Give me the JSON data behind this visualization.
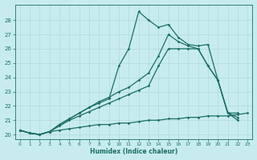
{
  "xlabel": "Humidex (Indice chaleur)",
  "bg_color": "#c8ecee",
  "grid_color": "#afd8da",
  "line_color": "#1a6e65",
  "xlim": [
    -0.5,
    23.5
  ],
  "ylim": [
    19.7,
    29.1
  ],
  "x_ticks": [
    0,
    1,
    2,
    3,
    4,
    5,
    6,
    7,
    8,
    9,
    10,
    11,
    12,
    13,
    14,
    15,
    16,
    17,
    18,
    19,
    20,
    21,
    22,
    23
  ],
  "y_ticks": [
    20,
    21,
    22,
    23,
    24,
    25,
    26,
    27,
    28
  ],
  "line_flat_x": [
    0,
    1,
    2,
    3,
    4,
    5,
    6,
    7,
    8,
    9,
    10,
    11,
    12,
    13,
    14,
    15,
    16,
    17,
    18,
    19,
    20,
    21,
    22,
    23
  ],
  "line_flat_y": [
    20.3,
    20.1,
    20.0,
    20.2,
    20.3,
    20.4,
    20.5,
    20.6,
    20.7,
    20.7,
    20.8,
    20.8,
    20.9,
    21.0,
    21.0,
    21.1,
    21.1,
    21.2,
    21.2,
    21.3,
    21.3,
    21.3,
    21.4,
    21.5
  ],
  "line_diag1_x": [
    0,
    1,
    2,
    3,
    4,
    5,
    6,
    7,
    8,
    9,
    10,
    11,
    12,
    13,
    14,
    15,
    16,
    17,
    18,
    19,
    20,
    21,
    22
  ],
  "line_diag1_y": [
    20.3,
    20.1,
    20.0,
    20.2,
    20.6,
    21.0,
    21.3,
    21.6,
    21.9,
    22.2,
    22.5,
    22.8,
    23.1,
    23.4,
    24.8,
    26.0,
    26.0,
    26.0,
    26.0,
    24.8,
    23.8,
    21.5,
    21.0
  ],
  "line_diag2_x": [
    0,
    1,
    2,
    3,
    4,
    5,
    6,
    7,
    8,
    9,
    10,
    11,
    12,
    13,
    14,
    15,
    16,
    17,
    18,
    19,
    20,
    21,
    22
  ],
  "line_diag2_y": [
    20.3,
    20.1,
    20.0,
    20.2,
    20.7,
    21.1,
    21.5,
    21.9,
    22.3,
    22.6,
    23.0,
    23.3,
    23.8,
    24.3,
    25.5,
    27.0,
    26.5,
    26.2,
    26.0,
    24.8,
    23.8,
    21.5,
    21.5
  ],
  "line_spiky_x": [
    0,
    1,
    2,
    3,
    4,
    5,
    6,
    7,
    8,
    9,
    10,
    11,
    12,
    13,
    14,
    15,
    16,
    17,
    18,
    19,
    20,
    21,
    22
  ],
  "line_spiky_y": [
    20.3,
    20.1,
    20.0,
    20.2,
    20.7,
    21.1,
    21.5,
    21.9,
    22.2,
    22.5,
    24.8,
    26.0,
    28.6,
    28.0,
    27.5,
    27.7,
    26.8,
    26.3,
    26.2,
    26.3,
    23.8,
    21.5,
    21.2
  ]
}
